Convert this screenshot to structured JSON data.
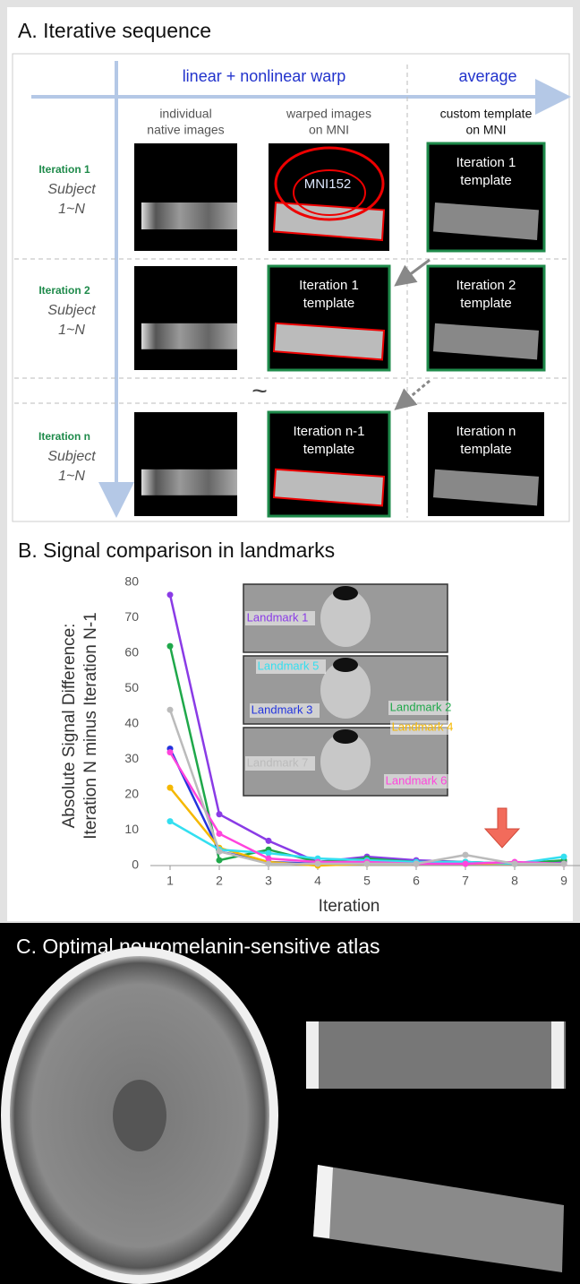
{
  "panel_a": {
    "title": "A. Iterative sequence",
    "header_left": "linear + nonlinear warp",
    "header_right": "average",
    "columns": [
      [
        "individual",
        "native images"
      ],
      [
        "warped images",
        "on MNI"
      ],
      [
        "custom template",
        "on MNI"
      ]
    ],
    "rows": [
      {
        "iteration": "Iteration 1",
        "subject": "Subject",
        "range": "1~N"
      },
      {
        "iteration": "Iteration 2",
        "subject": "Subject",
        "range": "1~N"
      },
      {
        "iteration": "Iteration n",
        "subject": "Subject",
        "range": "1~N"
      }
    ],
    "image_labels": {
      "mni": "MNI152",
      "r1c3": [
        "Iteration 1",
        "template"
      ],
      "r2c2": [
        "Iteration 1",
        "template"
      ],
      "r2c3": [
        "Iteration 2",
        "template"
      ],
      "r3c2": [
        "Iteration n-1",
        "template"
      ],
      "r3c3": [
        "Iteration n",
        "template"
      ]
    },
    "ellipsis": "~"
  },
  "chart_data": {
    "type": "line",
    "title": "B. Signal comparison in landmarks",
    "y_label": [
      "Absolute Signal Difference:",
      "Iteration N minus Iteration N-1"
    ],
    "x_label": "Iteration",
    "x": [
      1,
      2,
      3,
      4,
      5,
      6,
      7,
      8,
      9
    ],
    "xlim": [
      0.6,
      9.4
    ],
    "xticks": [
      1,
      2,
      3,
      4,
      5,
      6,
      7,
      8,
      9
    ],
    "ylim": [
      0,
      80
    ],
    "yticks": [
      0,
      10,
      20,
      30,
      40,
      50,
      60,
      70,
      80
    ],
    "series": [
      {
        "name": "Landmark 1",
        "color": "#8a3be6",
        "values": [
          76.5,
          14.5,
          7,
          1,
          2.5,
          1.5,
          1,
          0.5,
          1
        ]
      },
      {
        "name": "Landmark 2",
        "color": "#1fa84a",
        "values": [
          62,
          1.5,
          4.5,
          1,
          2,
          1,
          1,
          0.5,
          1.5
        ]
      },
      {
        "name": "Landmark 3",
        "color": "#2233dd",
        "values": [
          33,
          4,
          1,
          0.5,
          1,
          0.5,
          0.5,
          0.5,
          0.5
        ]
      },
      {
        "name": "Landmark 4",
        "color": "#f5b800",
        "values": [
          22,
          5,
          1,
          0,
          0.5,
          0.5,
          0.5,
          0.5,
          0.5
        ]
      },
      {
        "name": "Landmark 5",
        "color": "#33dff0",
        "values": [
          12.5,
          4.5,
          3.5,
          2,
          1.5,
          1,
          1,
          0.5,
          2.5
        ]
      },
      {
        "name": "Landmark 6",
        "color": "#ff44dd",
        "values": [
          32,
          9,
          2,
          1,
          1,
          0.5,
          0.5,
          1,
          0.5
        ]
      },
      {
        "name": "Landmark 7",
        "color": "#bbbbbb",
        "values": [
          44,
          4,
          0.5,
          0.5,
          0.5,
          0.5,
          3,
          0.5,
          0.5
        ]
      }
    ]
  },
  "panel_c": {
    "title": "C. Optimal neuromelanin-sensitive atlas"
  }
}
